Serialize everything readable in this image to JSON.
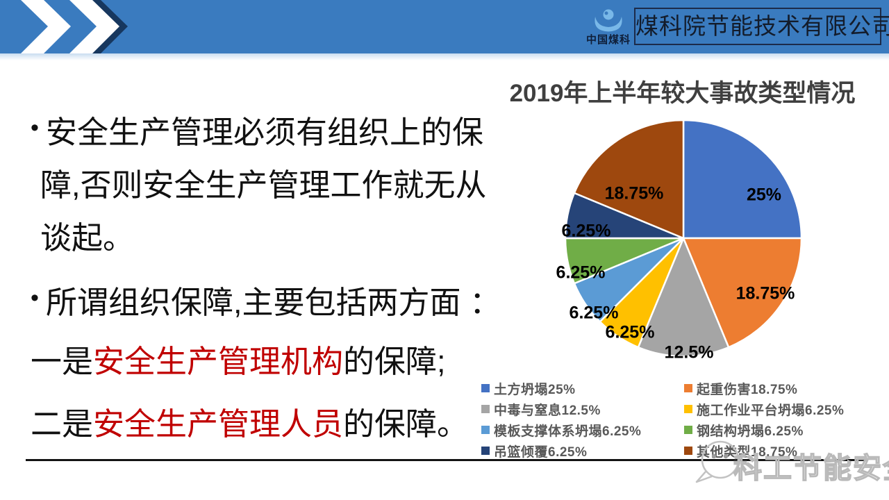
{
  "header": {
    "logo_text": "中国煤科",
    "company": "煤科院节能技术有限公司"
  },
  "content": {
    "bullet_glyph": "•",
    "bullet1_line1": "安全生产管理必须有组织上的保",
    "bullet1_line2": "障,否则安全生产管理工作就无从",
    "bullet1_line3": "谈起。",
    "bullet2": "所谓组织保障,主要包括两方面 ：",
    "point1_prefix": "一是",
    "point1_highlight": "安全生产管理机构",
    "point1_suffix": "的保障;",
    "point2_prefix": "二是",
    "point2_highlight": "安全生产管理人员",
    "point2_suffix": "的保障。"
  },
  "chart_data": {
    "type": "pie",
    "title": "2019年上半年较大事故类型情况",
    "start_angle_deg": 0,
    "direction": "clockwise",
    "legend_position": "bottom, two columns, row-major",
    "series": [
      {
        "label": "土方坍塌",
        "value": 25,
        "display": "25%",
        "color": "#4472C4"
      },
      {
        "label": "起重伤害",
        "value": 18.75,
        "display": "18.75%",
        "color": "#ED7D31"
      },
      {
        "label": "中毒与窒息",
        "value": 12.5,
        "display": "12.5%",
        "color": "#A5A5A5"
      },
      {
        "label": "施工作业平台坍塌",
        "value": 6.25,
        "display": "6.25%",
        "color": "#FFC000"
      },
      {
        "label": "模板支撑体系坍塌",
        "value": 6.25,
        "display": "6.25%",
        "color": "#5B9BD5"
      },
      {
        "label": "钢结构坍塌",
        "value": 6.25,
        "display": "6.25%",
        "color": "#70AD47"
      },
      {
        "label": "吊篮倾覆",
        "value": 6.25,
        "display": "6.25%",
        "color": "#264478"
      },
      {
        "label": "其他类型",
        "value": 18.75,
        "display": "18.75%",
        "color": "#9E480E"
      }
    ]
  },
  "watermark": {
    "text": "科工节能安全",
    "face_icon": "smiley-chat-bubble-icon"
  },
  "colors": {
    "header_blue": "#3A7BBF",
    "header_accent_dark": "#17375E",
    "title_gray": "#3F3F3F",
    "legend_text": "#595959",
    "highlight_red": "#C00000",
    "label_black": "#000000"
  }
}
